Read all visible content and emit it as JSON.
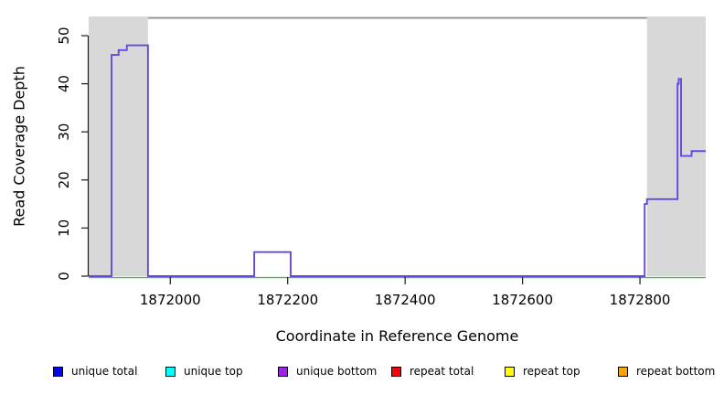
{
  "chart_data": {
    "type": "line",
    "subtype": "step",
    "title": "",
    "xlabel": "Coordinate in Reference Genome",
    "ylabel": "Read Coverage Depth",
    "xlim": [
      1871861,
      1872912
    ],
    "ylim": [
      0,
      54
    ],
    "x_ticks": [
      1872000,
      1872200,
      1872400,
      1872600,
      1872800
    ],
    "y_ticks": [
      0,
      10,
      20,
      30,
      40,
      50
    ],
    "grid": false,
    "legend_position": "bottom",
    "shaded_regions": [
      {
        "name": "left-shaded-region",
        "start": 1871861,
        "end": 1871962,
        "color": "#d8d8d8"
      },
      {
        "name": "right-shaded-region",
        "start": 1872812,
        "end": 1872912,
        "color": "#d8d8d8"
      }
    ],
    "top_boundary_line": {
      "y": 53.7,
      "start": 1871962,
      "end": 1872812,
      "color": "#909090"
    },
    "zero_line": {
      "y": 0,
      "start": 1871861,
      "end": 1872912,
      "color": "#44bb44"
    },
    "series": [
      {
        "name": "unique bottom coverage",
        "color": "#6847e0",
        "step_points": [
          [
            1871861,
            0
          ],
          [
            1871900,
            46
          ],
          [
            1871912,
            47
          ],
          [
            1871926,
            48
          ],
          [
            1871962,
            0
          ],
          [
            1872143,
            5
          ],
          [
            1872205,
            0
          ],
          [
            1872808,
            15
          ],
          [
            1872812,
            16
          ],
          [
            1872864,
            40
          ],
          [
            1872866,
            41
          ],
          [
            1872870,
            25
          ],
          [
            1872888,
            26
          ],
          [
            1872912,
            26
          ]
        ]
      }
    ],
    "legend": [
      {
        "label": "unique total",
        "color": "#0000ff"
      },
      {
        "label": "unique top",
        "color": "#00ffff"
      },
      {
        "label": "unique bottom",
        "color": "#a020f0"
      },
      {
        "label": "repeat total",
        "color": "#ff0000"
      },
      {
        "label": "repeat top",
        "color": "#ffff00"
      },
      {
        "label": "repeat bottom",
        "color": "#ffa500"
      }
    ]
  }
}
